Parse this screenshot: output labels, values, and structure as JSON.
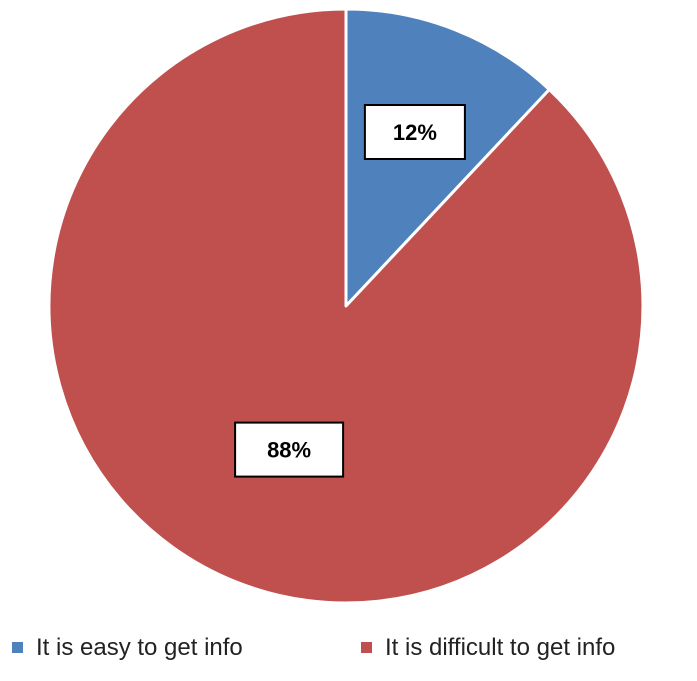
{
  "chart_data": {
    "type": "pie",
    "title": "",
    "categories": [
      "It is easy to get info",
      "It is difficult to get info"
    ],
    "values": [
      12,
      88
    ],
    "data_labels": [
      "12%",
      "88%"
    ],
    "colors": [
      "#4f81bd",
      "#c0504d"
    ],
    "legend": {
      "position": "bottom",
      "entries": [
        "It is easy to get info",
        "It is difficult to get info"
      ]
    }
  }
}
